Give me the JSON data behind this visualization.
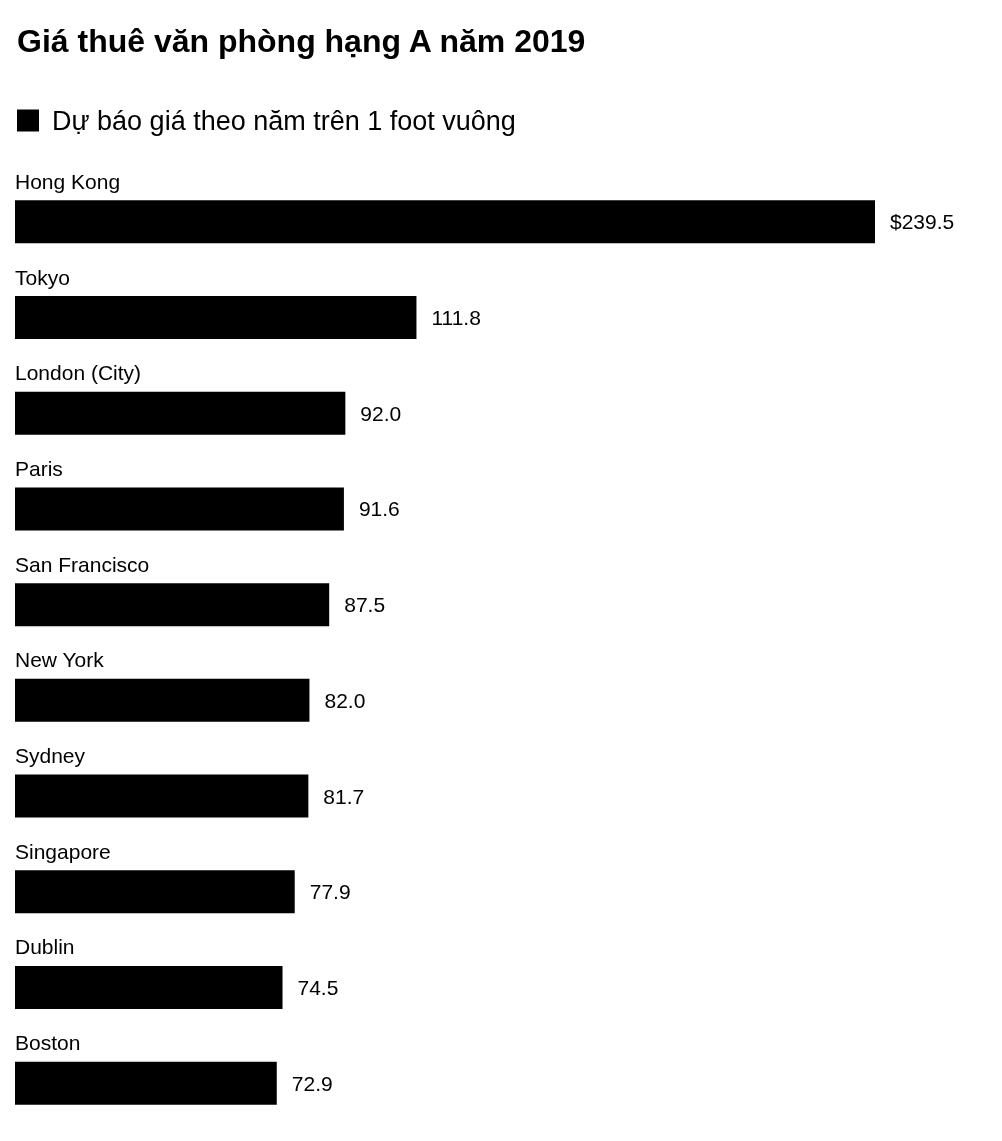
{
  "chart_data": {
    "type": "bar",
    "orientation": "horizontal",
    "title": "Giá thuê văn phòng hạng A năm 2019",
    "categories": [
      "Hong Kong",
      "Tokyo",
      "London (City)",
      "Paris",
      "San Francisco",
      "New York",
      "Sydney",
      "Singapore",
      "Dublin",
      "Boston"
    ],
    "series": [
      {
        "name": "Dự báo giá theo năm trên 1 foot vuông",
        "color": "#000000",
        "values": [
          239.5,
          111.8,
          92.0,
          91.6,
          87.5,
          82.0,
          81.7,
          77.9,
          74.5,
          72.9
        ],
        "value_labels": [
          "$239.5",
          "111.8",
          "92.0",
          "91.6",
          "87.5",
          "82.0",
          "81.7",
          "77.9",
          "74.5",
          "72.9"
        ]
      }
    ],
    "legend": "top left",
    "grid": false
  }
}
